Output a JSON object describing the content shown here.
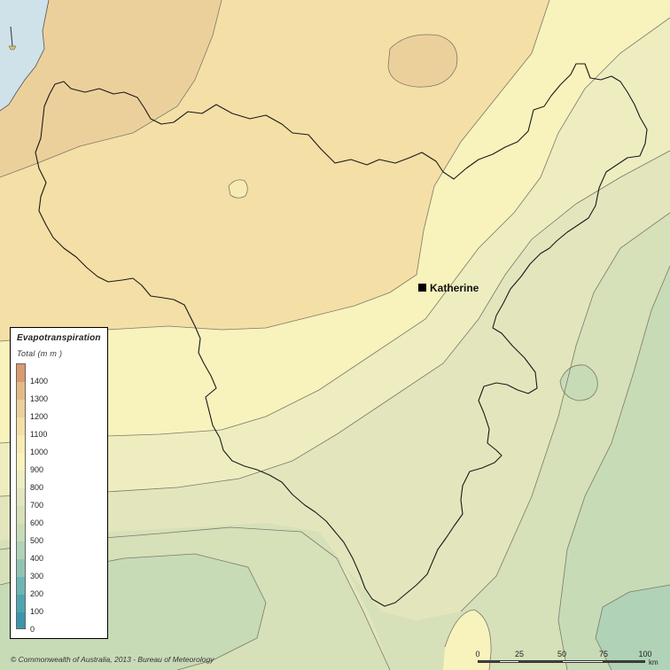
{
  "colors": {
    "water": "#cfe2ea",
    "band_1400": "#d99a6e",
    "band_1300": "#e3ba86",
    "band_1200": "#ecd09c",
    "band_1100": "#f4dfa6",
    "band_1000": "#f8ebb2",
    "band_900": "#f8f2bc",
    "band_800": "#eeedc0",
    "band_700": "#e3e6bd",
    "band_600": "#d6e0b9",
    "band_500": "#c8dbb7",
    "band_400": "#b0d2b6",
    "band_300": "#8fc4b4",
    "band_200": "#6cb5b2",
    "band_100": "#4ea5b0",
    "band_0": "#3a95ad",
    "catchment_outline": "#1a1a1a",
    "contour_line": "#7a7a6a"
  },
  "legend": {
    "title": "Evapotranspiration",
    "subtitle": "Total (m m )",
    "labels": [
      "1400",
      "1300",
      "1200",
      "1100",
      "1000",
      "900",
      "800",
      "700",
      "600",
      "500",
      "400",
      "300",
      "200",
      "100",
      "0"
    ]
  },
  "town": {
    "name": "Katherine"
  },
  "scale": {
    "ticks": [
      "0",
      "25",
      "50",
      "75",
      "100"
    ],
    "unit": "km"
  },
  "copyright": "© Commonwealth of Australia, 2013 - Bureau of Meteorology"
}
